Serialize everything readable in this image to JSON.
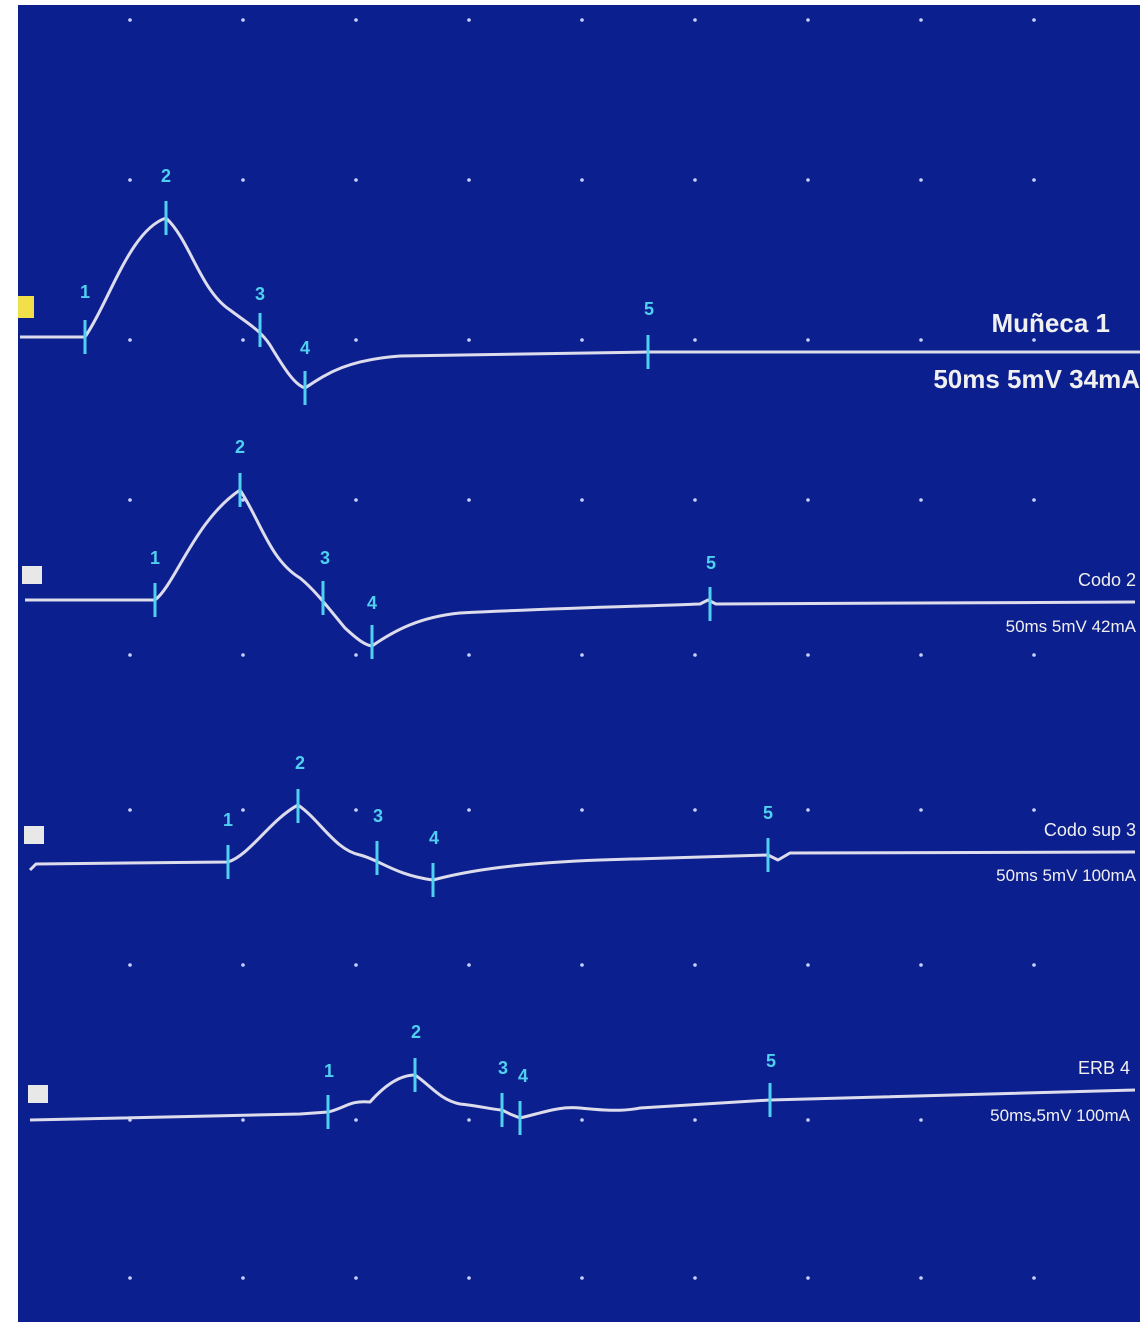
{
  "traces": [
    {
      "name": "Muñeca 1",
      "settings": "50ms 5mV 34mA",
      "markers": [
        "1",
        "2",
        "3",
        "4",
        "5"
      ]
    },
    {
      "name": "Codo 2",
      "settings": "50ms 5mV 42mA",
      "markers": [
        "1",
        "2",
        "3",
        "4",
        "5"
      ]
    },
    {
      "name": "Codo sup 3",
      "settings": "50ms 5mV 100mA",
      "markers": [
        "1",
        "2",
        "3",
        "4",
        "5"
      ]
    },
    {
      "name": "ERB 4",
      "settings": "50ms 5mV 100mA",
      "markers": [
        "1",
        "2",
        "3",
        "4",
        "5"
      ]
    }
  ]
}
